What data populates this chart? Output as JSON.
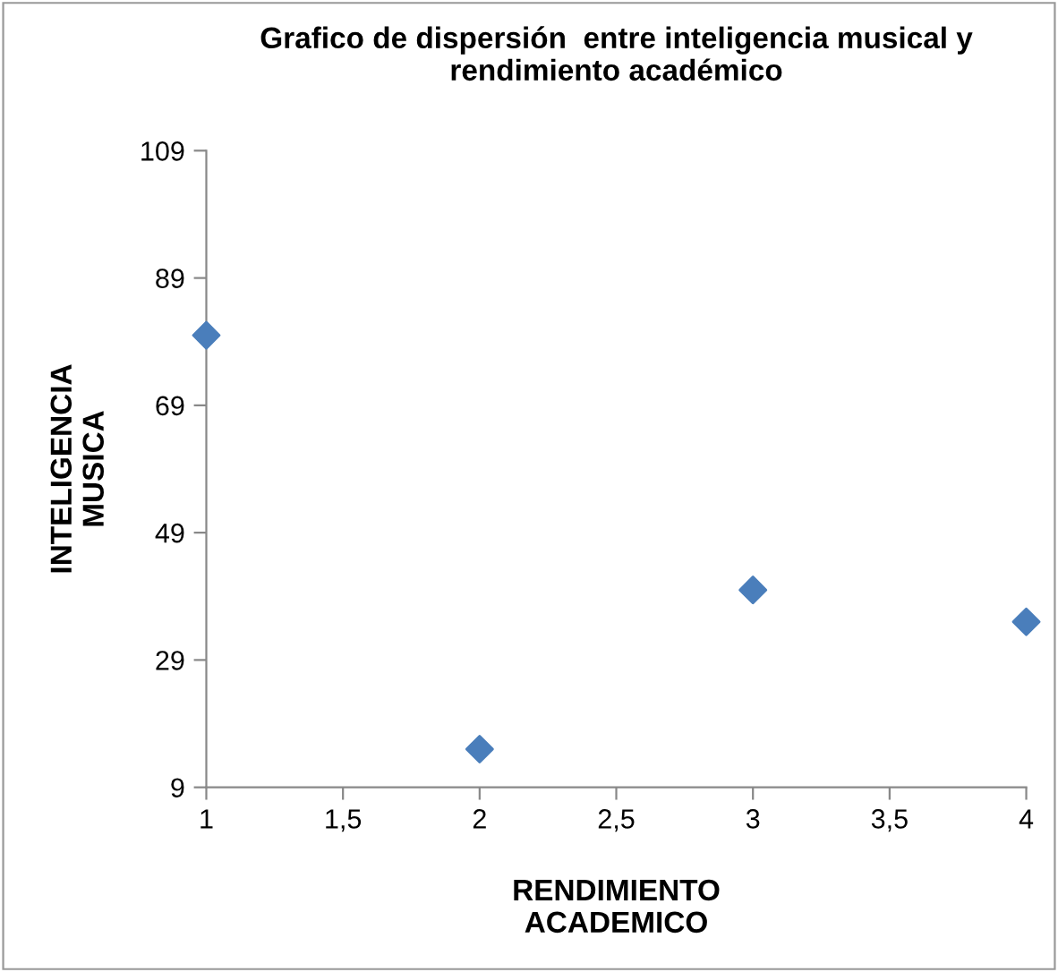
{
  "chart_data": {
    "type": "scatter",
    "title": "Grafico de dispersión  entre inteligencia musical y rendimiento académico",
    "xlabel": "RENDIMIENTO\nACADEMICO",
    "ylabel": "INTELIGENCIA\nMUSICA",
    "x": [
      1,
      2,
      3,
      4
    ],
    "series": [
      {
        "color": "#4a7ebb",
        "values": [
          80,
          15,
          40,
          35
        ]
      }
    ],
    "xlim": [
      1,
      4
    ],
    "ylim": [
      9,
      109
    ],
    "xticks": [
      1,
      {
        "value": 1.5,
        "label": "1,5"
      },
      2,
      {
        "value": 2.5,
        "label": "2,5"
      },
      3,
      {
        "value": 3.5,
        "label": "3,5"
      },
      4
    ],
    "yticks": [
      9,
      29,
      49,
      69,
      89,
      109
    ],
    "marker": "diamond",
    "grid": false,
    "legend": false
  }
}
